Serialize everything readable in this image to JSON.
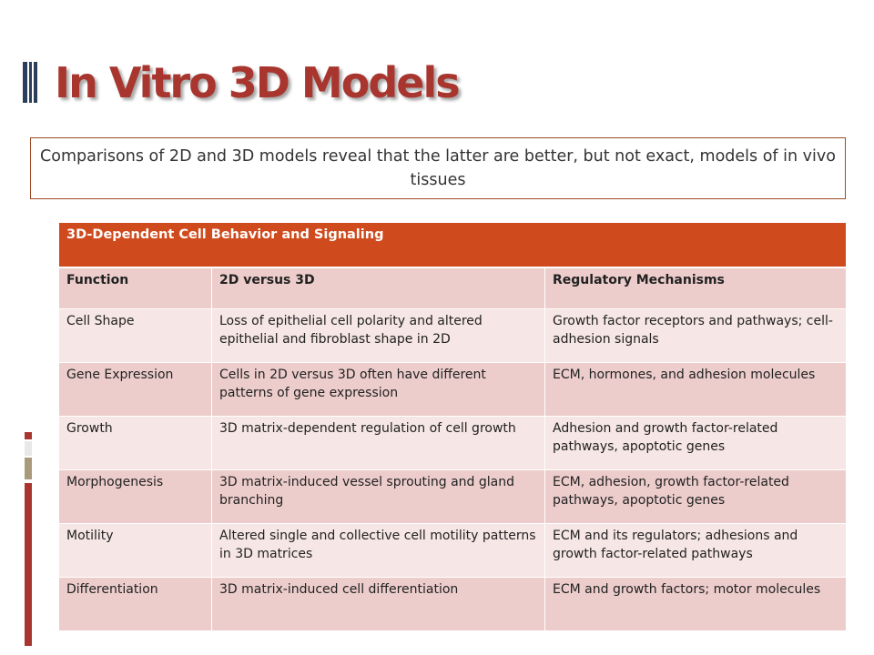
{
  "slide": {
    "title": "In Vitro 3D Models",
    "subtitle": "Comparisons of 2D and 3D models reveal that the latter are better, but not exact, models of in vivo tissues"
  },
  "table": {
    "caption": "3D-Dependent Cell Behavior and Signaling",
    "headers": [
      "Function",
      "2D versus 3D",
      "Regulatory Mechanisms"
    ],
    "rows": [
      [
        "Cell Shape",
        "Loss of epithelial cell polarity and altered epithelial and fibroblast shape in 2D",
        "Growth factor receptors and pathways; cell-adhesion signals"
      ],
      [
        "Gene Expression",
        "Cells in 2D versus 3D often have different patterns of gene expression",
        "ECM, hormones, and adhesion molecules"
      ],
      [
        "Growth",
        "3D matrix-dependent regulation of cell growth",
        "Adhesion and growth factor-related pathways, apoptotic genes"
      ],
      [
        "Morphogenesis",
        "3D matrix-induced vessel sprouting and gland branching",
        "ECM, adhesion, growth factor-related pathways, apoptotic genes"
      ],
      [
        "Motility",
        "Altered single and collective cell motility patterns in 3D matrices",
        "ECM and its regulators; adhesions and growth factor-related pathways"
      ],
      [
        "Differentiation",
        "3D matrix-induced cell differentiation",
        "ECM and growth factors; motor molecules"
      ]
    ]
  },
  "colors": {
    "title": "#a8362f",
    "caption_bg": "#cf4a1c",
    "header_bg": "#edcdcb",
    "row_light": "#f6e6e5",
    "row_dark": "#eccdcb"
  }
}
